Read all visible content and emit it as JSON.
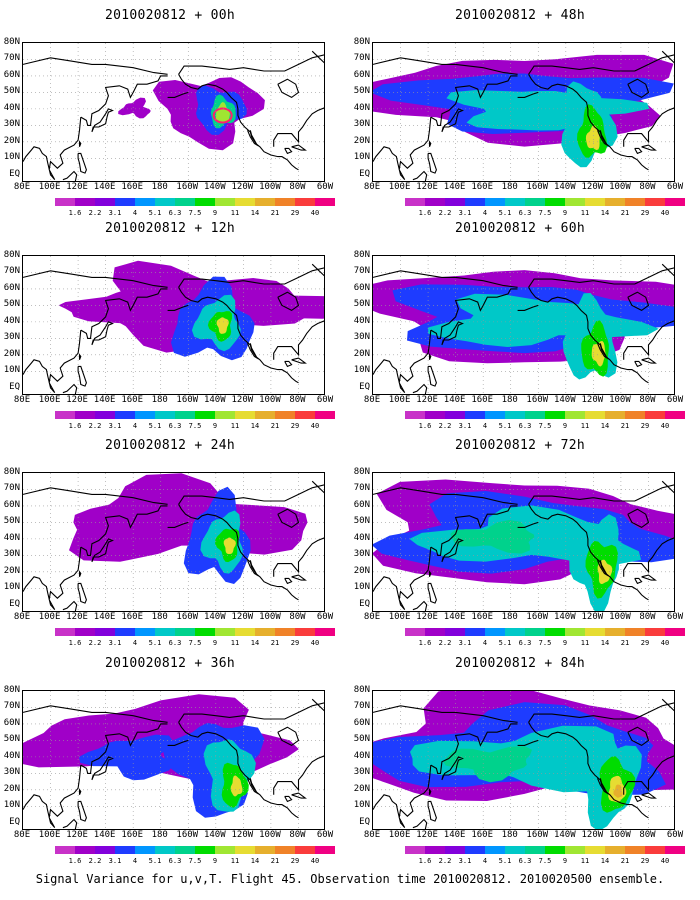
{
  "footer": "Signal Variance for u,v,T. Flight 45. Observation time 2010020812. 2010020500 ensemble.",
  "axes": {
    "lat_labels": [
      "80N",
      "70N",
      "60N",
      "50N",
      "40N",
      "30N",
      "20N",
      "10N",
      "EQ"
    ],
    "lon_labels": [
      "80E",
      "100E",
      "120E",
      "140E",
      "160E",
      "180",
      "160W",
      "140W",
      "120W",
      "100W",
      "80W",
      "60W"
    ]
  },
  "colorbar": {
    "levels": [
      "1.6",
      "2.2",
      "3.1",
      "4",
      "5.1",
      "6.3",
      "7.5",
      "9",
      "11",
      "14",
      "21",
      "29",
      "40"
    ],
    "colors": [
      "#a000c8",
      "#8200dc",
      "#1e3cff",
      "#0096ff",
      "#00c8c8",
      "#00d28c",
      "#00dc00",
      "#a0e632",
      "#e6dc32",
      "#e6af2d",
      "#f08228",
      "#fa3c3c",
      "#f00082"
    ]
  },
  "chart_data": [
    {
      "type": "heatmap",
      "title": "2010020812 + 00h",
      "lead_hours": 0,
      "max_level": "11",
      "spread": "small patch near 140W/40N"
    },
    {
      "type": "heatmap",
      "title": "2010020812 + 12h",
      "lead_hours": 12,
      "max_level": "11",
      "spread": "160W-120W, 20N-60N"
    },
    {
      "type": "heatmap",
      "title": "2010020812 + 24h",
      "lead_hours": 24,
      "max_level": "11",
      "spread": "north Pacific, 140W-110W peak"
    },
    {
      "type": "heatmap",
      "title": "2010020812 + 36h",
      "lead_hours": 36,
      "max_level": "11",
      "spread": "basin-wide, peak near 120W/25N"
    },
    {
      "type": "heatmap",
      "title": "2010020812 + 48h",
      "lead_hours": 48,
      "max_level": "11",
      "spread": "basin-wide, peak near 120W/25N"
    },
    {
      "type": "heatmap",
      "title": "2010020812 + 60h",
      "lead_hours": 60,
      "max_level": "11",
      "spread": "basin-wide, peak near 115W/25N"
    },
    {
      "type": "heatmap",
      "title": "2010020812 + 72h",
      "lead_hours": 72,
      "max_level": "11",
      "spread": "basin-wide, peak near 110W/25N"
    },
    {
      "type": "heatmap",
      "title": "2010020812 + 84h",
      "lead_hours": 84,
      "max_level": "14",
      "spread": "basin-wide, peak near 100W/25N"
    }
  ]
}
